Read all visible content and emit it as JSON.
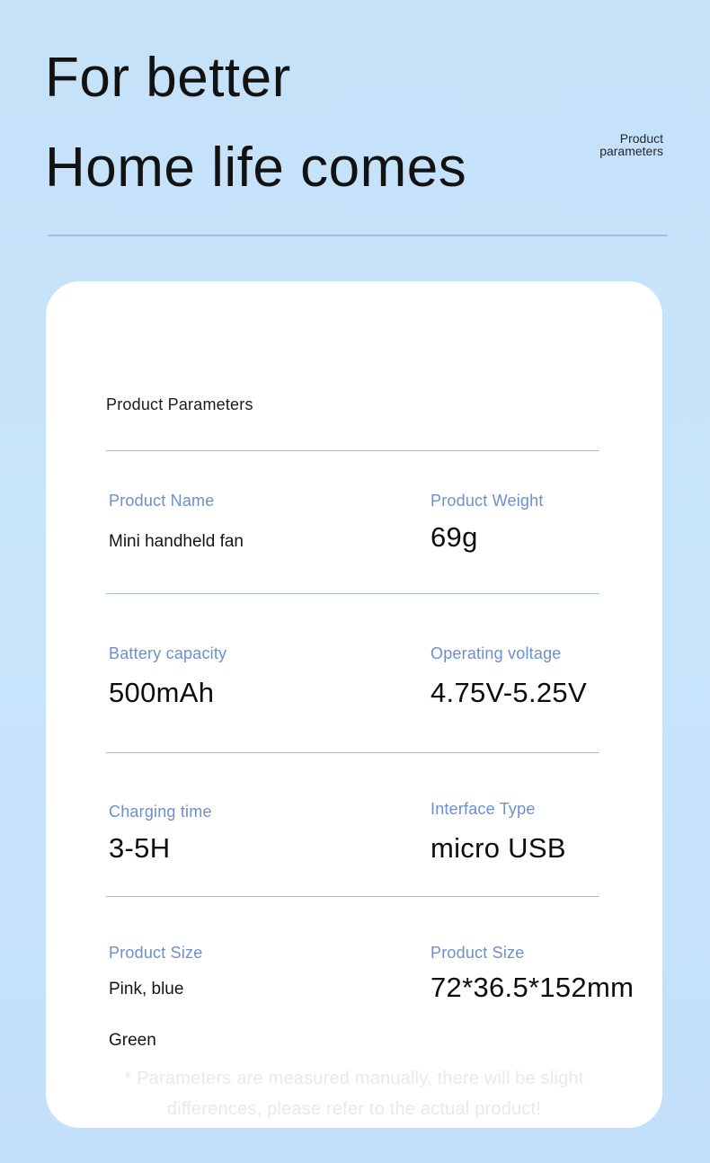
{
  "header": {
    "title_line1": "For better",
    "title_line2": "Home life comes",
    "corner_label_line1": "Product",
    "corner_label_line2": "parameters"
  },
  "card": {
    "heading": "Product Parameters",
    "rows": [
      {
        "left": {
          "label": "Product Name",
          "value": "Mini handheld fan"
        },
        "right": {
          "label": "Product Weight",
          "value": "69g"
        }
      },
      {
        "left": {
          "label": "Battery capacity",
          "value": "500mAh"
        },
        "right": {
          "label": "Operating voltage",
          "value": "4.75V-5.25V"
        }
      },
      {
        "left": {
          "label": "Charging time",
          "value": "3-5H"
        },
        "right": {
          "label": "Interface Type",
          "value": "micro USB"
        }
      },
      {
        "left": {
          "label": "Product Size",
          "value": "Pink, blue",
          "value2": "Green"
        },
        "right": {
          "label": "Product Size",
          "value": "72*36.5*152mm"
        }
      }
    ],
    "footnote_line1": "* Parameters are measured manually, there will be slight",
    "footnote_line2": "differences, please refer to the actual product!"
  },
  "colors": {
    "page_background": "#c6e3fa",
    "card_background": "#ffffff",
    "label_blue": "#6b8fd0",
    "card_divider_blue": "#a3c2dd",
    "header_divider_blue": "#a7bddd",
    "text_dark": "#121212",
    "footnote_gray": "#e9e9e9"
  }
}
